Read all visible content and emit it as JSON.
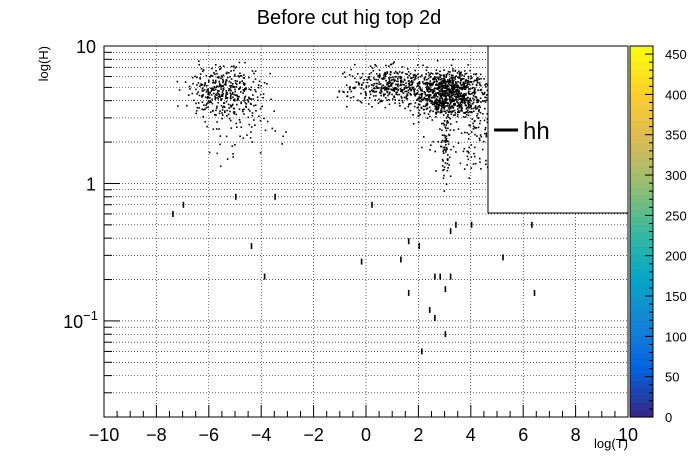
{
  "chart_data": {
    "type": "heatmap",
    "title": "Before cut hig top 2d",
    "xlabel": "log(T)",
    "ylabel": "log(H)",
    "xlim": [
      -10,
      10
    ],
    "ylim": [
      0.02,
      10
    ],
    "x_scale": "linear",
    "y_scale": "log",
    "grid": true,
    "x_ticks": [
      -10,
      -8,
      -6,
      -4,
      -2,
      0,
      2,
      4,
      6,
      8,
      10
    ],
    "x_tick_labels": [
      "−10",
      "−8",
      "−6",
      "−4",
      "−2",
      "0",
      "2",
      "4",
      "6",
      "8",
      "10"
    ],
    "y_ticks": [
      10,
      1,
      0.1
    ],
    "y_tick_labels": [
      {
        "base": "10",
        "exp": ""
      },
      {
        "base": "1",
        "exp": ""
      },
      {
        "base": "10",
        "exp": "−1"
      }
    ],
    "colorbar": {
      "min": 0,
      "max": 460,
      "ticks": [
        0,
        50,
        100,
        150,
        200,
        250,
        300,
        350,
        400,
        450
      ],
      "tick_labels": [
        "0",
        "50",
        "100",
        "150",
        "200",
        "250",
        "300",
        "350",
        "400",
        "450"
      ],
      "palette": [
        "#352a87",
        "#0363e1",
        "#1485d4",
        "#06a7c6",
        "#38b99e",
        "#92bf73",
        "#d9ba56",
        "#fcce2e",
        "#f9fb0e"
      ]
    },
    "legend": {
      "position": "top-right",
      "entries": [
        {
          "label": "hh",
          "style": "line",
          "color": "#000000"
        }
      ]
    },
    "clusters": [
      {
        "x_center": -5.4,
        "y_center": 4.6,
        "x_spread": 1.0,
        "y_spread_log": 0.13,
        "count": 380
      },
      {
        "x_center": 3.2,
        "y_center": 4.6,
        "x_spread": 1.0,
        "y_spread_log": 0.12,
        "count": 900
      },
      {
        "x_center": 1.0,
        "y_center": 5.2,
        "x_spread": 1.3,
        "y_spread_log": 0.1,
        "count": 420
      },
      {
        "x_center": 4.2,
        "y_center": 2.3,
        "x_spread": 1.3,
        "y_spread_log": 0.2,
        "count": 160
      },
      {
        "x_center": 3.0,
        "y_center": 2.0,
        "x_spread": 0.15,
        "y_spread_log": 0.25,
        "count": 60
      },
      {
        "x_center": -4.8,
        "y_center": 2.5,
        "x_spread": 1.0,
        "y_spread_log": 0.15,
        "count": 50
      }
    ],
    "isolated_bins": [
      {
        "x": -7.0,
        "y": 0.7
      },
      {
        "x": -7.4,
        "y": 0.6
      },
      {
        "x": -4.4,
        "y": 0.35
      },
      {
        "x": -3.9,
        "y": 0.21
      },
      {
        "x": -0.2,
        "y": 0.27
      },
      {
        "x": 1.3,
        "y": 0.28
      },
      {
        "x": 1.6,
        "y": 0.38
      },
      {
        "x": 2.0,
        "y": 0.35
      },
      {
        "x": 1.6,
        "y": 0.16
      },
      {
        "x": 2.6,
        "y": 0.21
      },
      {
        "x": 2.8,
        "y": 0.21
      },
      {
        "x": 3.2,
        "y": 0.21
      },
      {
        "x": 3.0,
        "y": 0.17
      },
      {
        "x": 2.4,
        "y": 0.12
      },
      {
        "x": 2.6,
        "y": 0.105
      },
      {
        "x": 3.0,
        "y": 0.08
      },
      {
        "x": 2.1,
        "y": 0.06
      },
      {
        "x": 5.2,
        "y": 0.29
      },
      {
        "x": 6.4,
        "y": 0.16
      },
      {
        "x": 6.3,
        "y": 0.5
      },
      {
        "x": 3.4,
        "y": 0.5
      },
      {
        "x": 3.2,
        "y": 0.45
      },
      {
        "x": 4.0,
        "y": 0.5
      },
      {
        "x": -3.5,
        "y": 0.8
      },
      {
        "x": -5.0,
        "y": 0.8
      },
      {
        "x": 0.2,
        "y": 0.7
      }
    ]
  }
}
